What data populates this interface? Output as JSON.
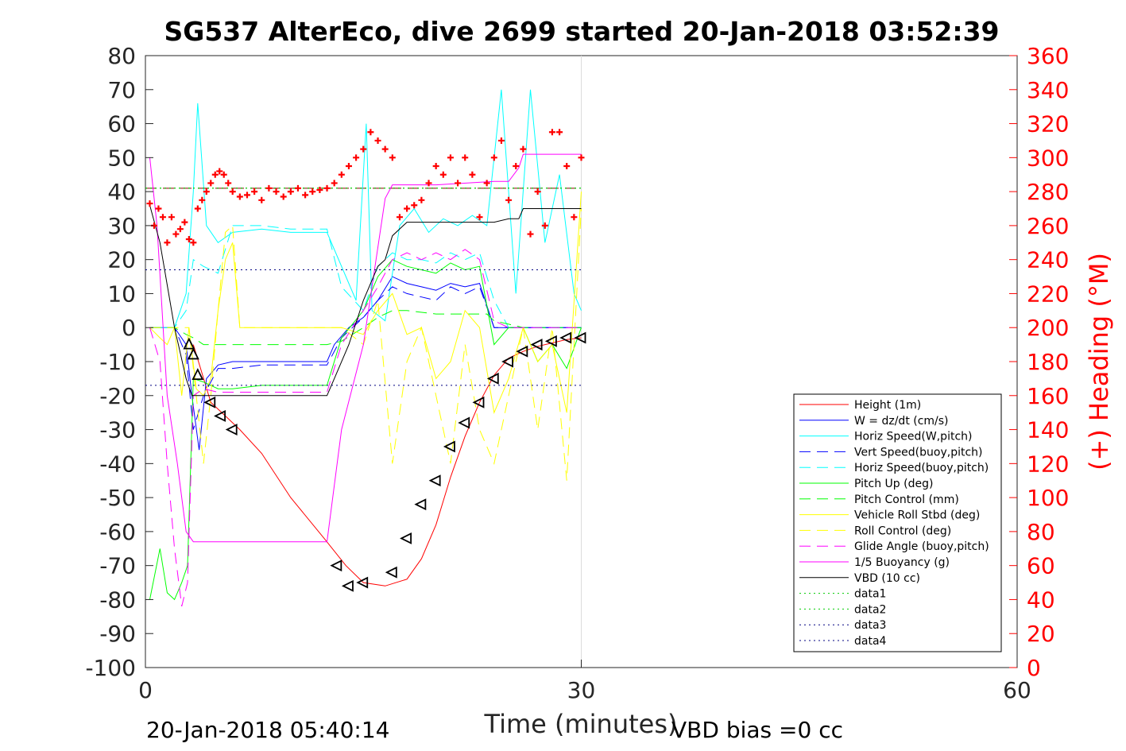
{
  "chart_data": {
    "type": "line",
    "title": "SG537 AlterEco, dive 2699 started 20-Jan-2018 03:52:39",
    "xlabel": "Time (minutes)",
    "ylabel_right": "(+) Heading (°M)",
    "xlim": [
      0,
      60
    ],
    "ylim": [
      -100,
      80
    ],
    "ylim_right": [
      0,
      360
    ],
    "x_ticks": [
      0,
      30,
      60
    ],
    "y_ticks": [
      80,
      70,
      60,
      50,
      40,
      30,
      20,
      10,
      0,
      -10,
      -20,
      -30,
      -40,
      -50,
      -60,
      -70,
      -80,
      -90,
      -100
    ],
    "y_ticks_right": [
      360,
      340,
      320,
      300,
      280,
      260,
      240,
      220,
      200,
      180,
      160,
      140,
      120,
      100,
      80,
      60,
      40,
      20,
      0
    ],
    "footer_left": "20-Jan-2018 05:40:14",
    "footer_right": "VBD bias =0 cc",
    "legend_position": "lower-right",
    "colors": {
      "height": "#ff0000",
      "w": "#0000ff",
      "cyan": "#00ffff",
      "green": "#00ff00",
      "yellow": "#ffff00",
      "magenta": "#ff00ff",
      "black": "#000000",
      "navy": "#000080"
    },
    "series": [
      {
        "name": "Height (1m)",
        "color": "#ff0000",
        "style": "solid",
        "x": [
          3.3,
          4.5,
          5.5,
          6.5,
          8,
          10,
          12.3,
          13.8,
          15,
          16.5,
          18,
          19,
          20,
          21,
          22,
          23,
          24,
          25,
          26,
          27,
          28,
          29,
          30
        ],
        "y": [
          -5,
          -22,
          -26,
          -30,
          -37,
          -50,
          -62,
          -70,
          -75,
          -76,
          -74,
          -68,
          -58,
          -44,
          -32,
          -22,
          -14,
          -9,
          -7,
          -5.5,
          -4.5,
          -3.5,
          -3
        ]
      },
      {
        "name": "W = dz/dt (cm/s)",
        "color": "#0000ff",
        "style": "solid",
        "x": [
          0.3,
          2,
          2.8,
          3.2,
          3.7,
          4.2,
          5,
          6,
          8,
          10,
          12.5,
          13,
          14,
          15,
          16,
          17,
          18,
          19,
          20,
          21,
          22,
          23,
          24,
          25,
          26,
          27,
          28,
          29,
          30
        ],
        "y": [
          0,
          0,
          -5,
          -20,
          -36,
          -15,
          -11,
          -10,
          -10,
          -10,
          -10,
          -5,
          0,
          3,
          8,
          15,
          13,
          12,
          11,
          13,
          12,
          13,
          0,
          0,
          0,
          0,
          0,
          0,
          0
        ]
      },
      {
        "name": "Horiz Speed(W,pitch)",
        "color": "#00ffff",
        "style": "solid",
        "x": [
          0.3,
          2,
          2.8,
          3.3,
          3.6,
          4.2,
          5,
          6,
          8,
          10,
          12.5,
          13.5,
          14.5,
          15.2,
          15.6,
          16.5,
          17.5,
          18.5,
          19.5,
          20.5,
          21.5,
          22.5,
          23.5,
          24.5,
          25.5,
          26.5,
          27.5,
          28.5,
          29.5,
          30
        ],
        "y": [
          0,
          0,
          10,
          40,
          66,
          30,
          25,
          28,
          29,
          28,
          28,
          18,
          8,
          60,
          5,
          2,
          30,
          35,
          28,
          32,
          30,
          33,
          30,
          70,
          10,
          70,
          25,
          45,
          10,
          5
        ]
      },
      {
        "name": "Vert Speed(buoy,pitch)",
        "color": "#0000ff",
        "style": "dashed",
        "x": [
          0.3,
          2,
          2.8,
          3.3,
          4,
          5,
          6,
          8,
          10,
          12.5,
          13.5,
          15,
          16,
          17,
          18,
          19,
          20,
          21,
          22,
          23,
          24,
          25,
          30
        ],
        "y": [
          0,
          0,
          -8,
          -30,
          -20,
          -12,
          -12,
          -11,
          -11,
          -11,
          -3,
          3,
          8,
          12,
          10,
          9,
          8,
          12,
          10,
          12,
          0,
          0,
          0
        ]
      },
      {
        "name": "Horiz Speed(buoy,pitch)",
        "color": "#00ffff",
        "style": "dashed",
        "x": [
          0.3,
          2,
          2.8,
          3.3,
          4,
          5,
          6,
          8,
          10,
          12.5,
          13.5,
          15,
          16,
          17,
          18,
          19,
          20,
          21,
          22,
          23,
          24,
          25,
          30
        ],
        "y": [
          0,
          0,
          5,
          20,
          18,
          16,
          30,
          30,
          29,
          29,
          12,
          5,
          18,
          22,
          20,
          20,
          19,
          22,
          20,
          22,
          8,
          0,
          0
        ]
      },
      {
        "name": "Pitch Up (deg)",
        "color": "#00ff00",
        "style": "solid",
        "x": [
          0.3,
          1,
          1.5,
          2,
          2.5,
          2.9,
          3.3,
          4,
          5,
          6,
          8,
          10,
          12.5,
          13.5,
          15,
          16,
          17,
          18,
          19,
          20,
          21,
          22,
          23,
          24,
          25,
          26,
          27,
          28,
          29,
          30
        ],
        "y": [
          -80,
          -65,
          -78,
          -80,
          -75,
          -70,
          -15,
          -16,
          -18,
          -18,
          -17,
          -17,
          -17,
          -3,
          5,
          15,
          20,
          18,
          17,
          16,
          19,
          17,
          18,
          -5,
          0,
          0,
          -10,
          -5,
          -12,
          0
        ]
      },
      {
        "name": "Pitch Control (mm)",
        "color": "#00ff00",
        "style": "dashed",
        "x": [
          0.3,
          2,
          2.8,
          3.3,
          4,
          6,
          8,
          10,
          12.5,
          13.5,
          15,
          16,
          17,
          18,
          20,
          22,
          23.5,
          24,
          25,
          26,
          30
        ],
        "y": [
          0,
          0,
          -2,
          -3,
          -5,
          -5,
          -5,
          -5,
          -5,
          -4,
          0,
          3,
          5,
          5,
          4,
          4,
          4,
          2,
          1,
          0,
          0
        ]
      },
      {
        "name": "Vehicle Roll Stbd (deg)",
        "color": "#ffff00",
        "style": "solid",
        "x": [
          0.3,
          1,
          1.5,
          2,
          2.5,
          3,
          3.5,
          4,
          4.5,
          5,
          5.5,
          6,
          6.5,
          8,
          10,
          12.5,
          13.5,
          15,
          16,
          17,
          18,
          19,
          20,
          21,
          22,
          23,
          24,
          25,
          26,
          27,
          28,
          29,
          30
        ],
        "y": [
          0,
          -3,
          -5,
          0,
          -20,
          0,
          -18,
          -20,
          -15,
          5,
          20,
          25,
          0,
          0,
          0,
          0,
          0,
          -2,
          5,
          10,
          -2,
          0,
          -15,
          -10,
          5,
          0,
          -25,
          -15,
          0,
          -10,
          -5,
          -25,
          40
        ]
      },
      {
        "name": "Roll Control (deg)",
        "color": "#ffff00",
        "style": "dashed",
        "x": [
          0.3,
          2,
          3,
          4,
          4.5,
          5,
          5.5,
          6,
          6.5,
          8,
          10,
          12.5,
          13.5,
          15,
          16,
          17,
          18,
          19,
          20,
          21,
          22,
          23,
          24,
          25,
          26,
          27,
          28,
          29,
          30
        ],
        "y": [
          0,
          0,
          0,
          -40,
          -20,
          5,
          28,
          30,
          0,
          0,
          0,
          0,
          0,
          -5,
          8,
          -40,
          -10,
          0,
          -20,
          -40,
          -5,
          -30,
          -40,
          -20,
          0,
          -30,
          0,
          -45,
          35
        ]
      },
      {
        "name": "Glide Angle (buoy,pitch)",
        "color": "#ff00ff",
        "style": "dashed",
        "x": [
          0.3,
          1,
          1.5,
          2,
          2.5,
          2.9,
          3.3,
          4,
          5,
          6,
          8,
          10,
          12.5,
          13.5,
          15,
          16,
          17,
          18,
          19,
          20,
          21,
          22,
          23,
          24,
          25,
          30
        ],
        "y": [
          0,
          -10,
          -40,
          -65,
          -82,
          -75,
          -20,
          -18,
          -19,
          -19,
          -19,
          -19,
          -19,
          -5,
          5,
          12,
          20,
          22,
          20,
          22,
          20,
          23,
          20,
          2,
          0,
          0
        ]
      },
      {
        "name": "1/5 Buoyancy (g)",
        "color": "#ff00ff",
        "style": "solid",
        "x": [
          0.3,
          0.8,
          1.5,
          2.2,
          2.8,
          3.3,
          4,
          8,
          12.5,
          13.5,
          15,
          16.5,
          17,
          20,
          24,
          25,
          25.7,
          26,
          30
        ],
        "y": [
          50,
          30,
          -20,
          -40,
          -60,
          -63,
          -63,
          -63,
          -63,
          -30,
          -5,
          38,
          42,
          42,
          43,
          43,
          47,
          51,
          51
        ]
      },
      {
        "name": "VBD (10 cc)",
        "color": "#000000",
        "style": "solid",
        "x": [
          0.3,
          1,
          2,
          2.8,
          3.2,
          6,
          8,
          12.5,
          13,
          14,
          15,
          16,
          16.5,
          17,
          18,
          20,
          22,
          24,
          25,
          25.7,
          26,
          30
        ],
        "y": [
          36,
          25,
          0,
          -15,
          -20,
          -20,
          -20,
          -20,
          -15,
          -5,
          8,
          18,
          20,
          27,
          31,
          31,
          31,
          31,
          32,
          32,
          35,
          35
        ]
      },
      {
        "name": "data1",
        "color": "#00cc00",
        "style": "dotted",
        "x": [
          0,
          30
        ],
        "y": [
          41,
          41
        ]
      },
      {
        "name": "data2",
        "color": "#00cc00",
        "style": "dotted",
        "x": [
          0,
          30
        ],
        "y": [
          41,
          41
        ]
      },
      {
        "name": "data3",
        "color": "#000080",
        "style": "dotted",
        "x": [
          0,
          30
        ],
        "y": [
          17,
          17
        ]
      },
      {
        "name": "data4",
        "color": "#000080",
        "style": "dotted",
        "x": [
          0,
          30
        ],
        "y": [
          -17,
          -17
        ]
      }
    ],
    "reference_line": {
      "color": "#8b0000",
      "style": "dashed",
      "x": [
        0,
        30
      ],
      "y": [
        41,
        41
      ]
    },
    "heading": {
      "color": "#ff0000",
      "x": [
        0.3,
        0.6,
        0.9,
        1.2,
        1.5,
        1.8,
        2.1,
        2.4,
        2.7,
        3.0,
        3.3,
        3.6,
        3.9,
        4.2,
        4.5,
        4.8,
        5.1,
        5.4,
        5.7,
        6.0,
        6.5,
        7,
        7.5,
        8,
        8.5,
        9,
        9.5,
        10,
        10.5,
        11,
        11.5,
        12,
        12.5,
        13,
        13.5,
        14,
        14.5,
        15,
        15.5,
        16,
        16.5,
        17,
        17.5,
        18,
        18.5,
        19,
        19.5,
        20,
        20.5,
        21,
        21.5,
        22,
        22.5,
        23,
        23.5,
        24,
        24.5,
        25,
        25.5,
        26,
        26.5,
        27,
        27.5,
        28,
        28.5,
        29,
        29.5,
        30
      ],
      "y": [
        273,
        260,
        270,
        265,
        250,
        265,
        255,
        258,
        262,
        252,
        250,
        270,
        275,
        280,
        285,
        290,
        292,
        290,
        285,
        280,
        277,
        278,
        280,
        275,
        282,
        280,
        277,
        280,
        282,
        278,
        280,
        281,
        282,
        285,
        290,
        295,
        300,
        305,
        315,
        310,
        305,
        300,
        265,
        270,
        272,
        275,
        285,
        295,
        290,
        300,
        285,
        300,
        290,
        265,
        285,
        300,
        310,
        275,
        295,
        305,
        255,
        280,
        260,
        315,
        315,
        295,
        265,
        300
      ]
    },
    "depth_markers": {
      "x": [
        3,
        3.3,
        3.6,
        4.5,
        5.2,
        6,
        13.2,
        14,
        15,
        17,
        18,
        19,
        20,
        21,
        22,
        23,
        24,
        25,
        26,
        27,
        28,
        29,
        30
      ],
      "y": [
        -5,
        -8,
        -14,
        -22,
        -26,
        -30,
        -70,
        -76,
        -75,
        -72,
        -62,
        -52,
        -45,
        -35,
        -28,
        -22,
        -15,
        -10,
        -7,
        -5,
        -4,
        -3,
        -3
      ]
    }
  }
}
